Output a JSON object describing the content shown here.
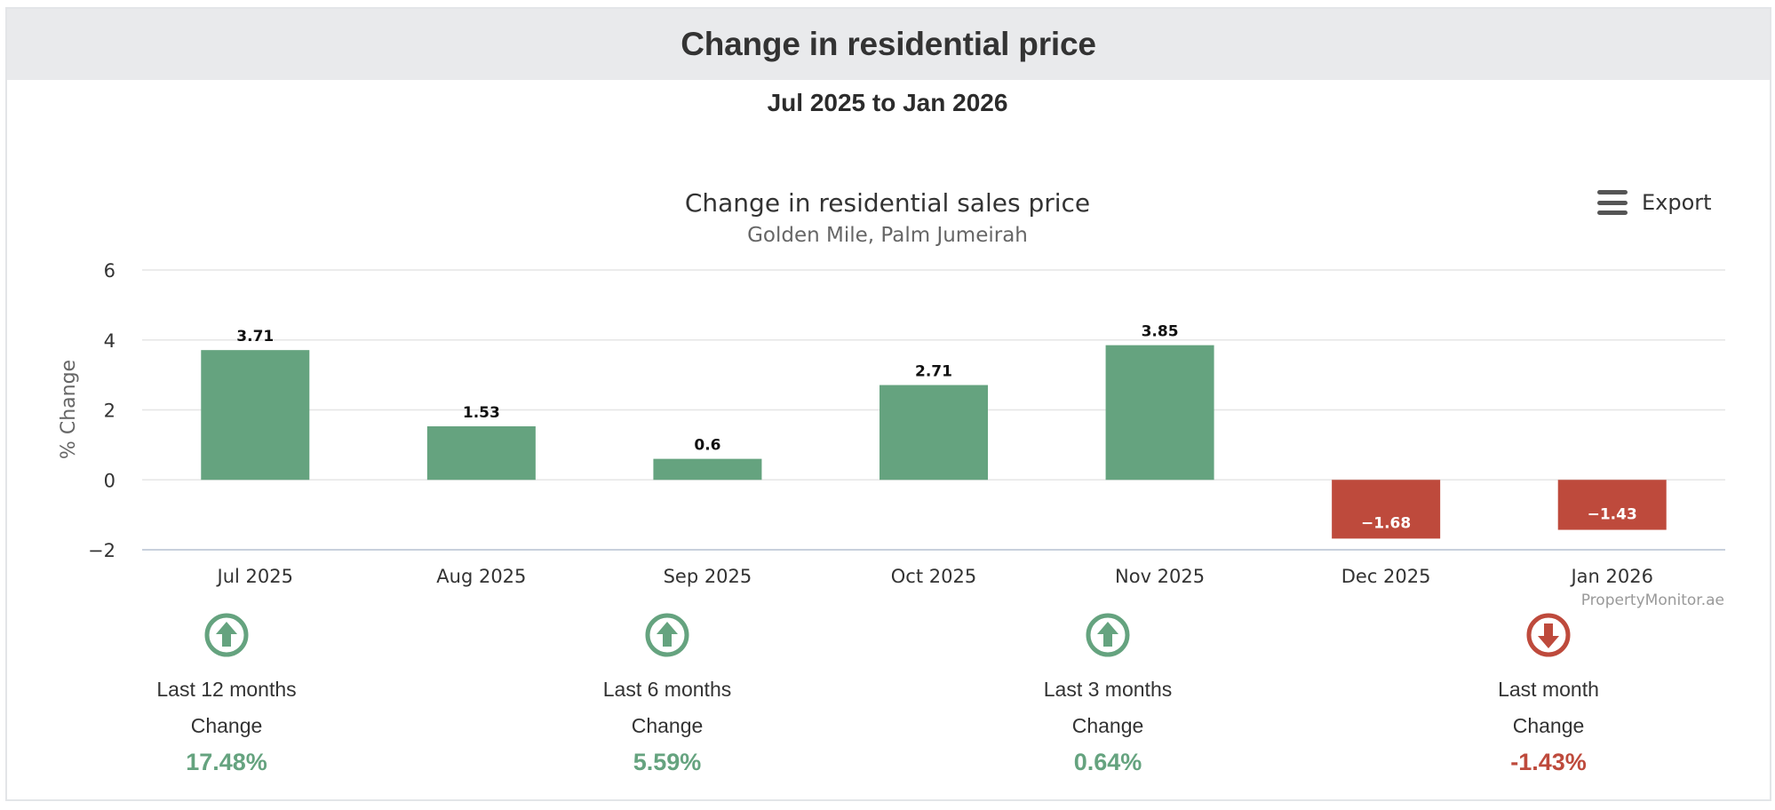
{
  "header": {
    "title": "Change in residential price"
  },
  "period": "Jul 2025 to Jan 2026",
  "export": {
    "label": "Export",
    "icon": "hamburger-menu-icon"
  },
  "colors": {
    "positive": "#65a37f",
    "negative": "#be4a3c"
  },
  "chart_data": {
    "type": "bar",
    "title": "Change in residential sales price",
    "subtitle": "Golden Mile, Palm Jumeirah",
    "xlabel": "",
    "ylabel": "% Change",
    "ylim": [
      -2,
      6
    ],
    "yticks": [
      6,
      4,
      2,
      0,
      -2
    ],
    "ytick_labels": [
      "6",
      "4",
      "2",
      "0",
      "−2"
    ],
    "grid": true,
    "categories": [
      "Jul 2025",
      "Aug 2025",
      "Sep 2025",
      "Oct 2025",
      "Nov 2025",
      "Dec 2025",
      "Jan 2026"
    ],
    "values": [
      3.71,
      1.53,
      0.6,
      2.71,
      3.85,
      -1.68,
      -1.43
    ],
    "value_labels": [
      "3.71",
      "1.53",
      "0.6",
      "2.71",
      "3.85",
      "−1.68",
      "−1.43"
    ],
    "credits": "PropertyMonitor.ae"
  },
  "summary": [
    {
      "label": "Last 12 months",
      "sub": "Change",
      "value": "17.48%",
      "direction": "up",
      "icon": "arrow-up-circle-icon"
    },
    {
      "label": "Last 6 months",
      "sub": "Change",
      "value": "5.59%",
      "direction": "up",
      "icon": "arrow-up-circle-icon"
    },
    {
      "label": "Last 3 months",
      "sub": "Change",
      "value": "0.64%",
      "direction": "up",
      "icon": "arrow-up-circle-icon"
    },
    {
      "label": "Last month",
      "sub": "Change",
      "value": "-1.43%",
      "direction": "down",
      "icon": "arrow-down-circle-icon"
    }
  ]
}
